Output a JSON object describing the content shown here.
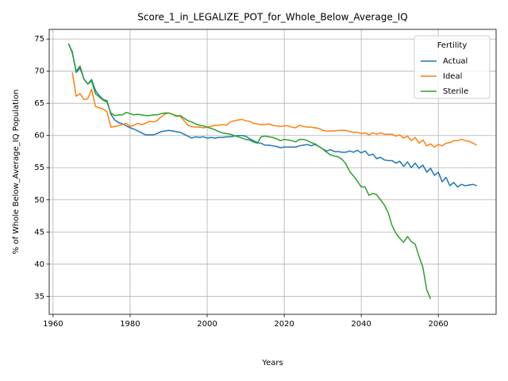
{
  "chart_data": {
    "type": "line",
    "title": "Score_1_in_LEGALIZE_POT_for_Whole_Below_Average_IQ",
    "xlabel": "Years",
    "ylabel": "% of Whole Below_Average_IQ Population",
    "legend_title": "Fertility",
    "legend_loc": "upper right",
    "grid": true,
    "xlim": [
      1959,
      2075
    ],
    "xticks": [
      1960,
      1980,
      2000,
      2020,
      2040,
      2060
    ],
    "ylim": [
      32.2,
      76.5
    ],
    "yticks": [
      35,
      40,
      45,
      50,
      55,
      60,
      65,
      70,
      75
    ],
    "series": [
      {
        "name": "Actual",
        "color": "#1f77b4",
        "x": [
          1964,
          1965,
          1966,
          1967,
          1968,
          1969,
          1970,
          1971,
          1972,
          1973,
          1974,
          1975,
          1976,
          1977,
          1978,
          1979,
          1980,
          1981,
          1982,
          1983,
          1984,
          1985,
          1986,
          1987,
          1988,
          1989,
          1990,
          1991,
          1992,
          1993,
          1994,
          1995,
          1996,
          1997,
          1998,
          1999,
          2000,
          2001,
          2002,
          2003,
          2004,
          2005,
          2006,
          2007,
          2008,
          2009,
          2010,
          2011,
          2012,
          2013,
          2014,
          2015,
          2016,
          2017,
          2018,
          2019,
          2020,
          2021,
          2022,
          2023,
          2024,
          2025,
          2026,
          2027,
          2028,
          2029,
          2030,
          2031,
          2032,
          2033,
          2034,
          2035,
          2036,
          2037,
          2038,
          2039,
          2040,
          2041,
          2042,
          2043,
          2044,
          2045,
          2046,
          2047,
          2048,
          2049,
          2050,
          2051,
          2052,
          2053,
          2054,
          2055,
          2056,
          2057,
          2058,
          2059,
          2060,
          2061,
          2062,
          2063,
          2064,
          2065,
          2066,
          2067,
          2068,
          2069,
          2070
        ],
        "values": [
          74.3,
          73,
          69.8,
          70.5,
          68.8,
          68,
          68.7,
          67,
          66.2,
          65.6,
          65.4,
          63.3,
          62.4,
          62,
          61.8,
          61.5,
          61.2,
          61,
          60.7,
          60.4,
          60.1,
          60.1,
          60.1,
          60.3,
          60.6,
          60.7,
          60.8,
          60.7,
          60.6,
          60.5,
          60.2,
          59.9,
          59.6,
          59.8,
          59.7,
          59.8,
          59.6,
          59.7,
          59.6,
          59.7,
          59.7,
          59.8,
          59.8,
          59.9,
          60,
          60,
          59.9,
          59.5,
          59.2,
          58.9,
          58.8,
          58.5,
          58.5,
          58.4,
          58.3,
          58.1,
          58.2,
          58.2,
          58.2,
          58.2,
          58.4,
          58.5,
          58.6,
          58.4,
          58.6,
          58.3,
          57.9,
          57.6,
          57.8,
          57.5,
          57.5,
          57.4,
          57.4,
          57.6,
          57.4,
          57.7,
          57.3,
          57.6,
          56.9,
          57.1,
          56.4,
          56.6,
          56.2,
          56.1,
          56.1,
          55.7,
          56,
          55.2,
          55.9,
          55,
          55.7,
          54.9,
          55.4,
          54.3,
          54.9,
          53.8,
          54.3,
          52.8,
          53.5,
          52.2,
          52.7,
          52,
          52.4,
          52.2,
          52.3,
          52.4,
          52.2
        ]
      },
      {
        "name": "Ideal",
        "color": "#ff7f0e",
        "x": [
          1965,
          1966,
          1967,
          1968,
          1969,
          1970,
          1971,
          1972,
          1973,
          1974,
          1975,
          1976,
          1977,
          1978,
          1979,
          1980,
          1981,
          1982,
          1983,
          1984,
          1985,
          1986,
          1987,
          1988,
          1989,
          1990,
          1991,
          1992,
          1993,
          1994,
          1995,
          1996,
          1997,
          1998,
          1999,
          2000,
          2001,
          2002,
          2003,
          2004,
          2005,
          2006,
          2007,
          2008,
          2009,
          2010,
          2011,
          2012,
          2013,
          2014,
          2015,
          2016,
          2017,
          2018,
          2019,
          2020,
          2021,
          2022,
          2023,
          2024,
          2025,
          2026,
          2027,
          2028,
          2029,
          2030,
          2031,
          2032,
          2033,
          2034,
          2035,
          2036,
          2037,
          2038,
          2039,
          2040,
          2041,
          2042,
          2043,
          2044,
          2045,
          2046,
          2047,
          2048,
          2049,
          2050,
          2051,
          2052,
          2053,
          2054,
          2055,
          2056,
          2057,
          2058,
          2059,
          2060,
          2061,
          2062,
          2063,
          2064,
          2065,
          2066,
          2067,
          2068,
          2069,
          2070
        ],
        "values": [
          69.8,
          66.1,
          66.5,
          65.6,
          65.7,
          67.2,
          64.5,
          64.3,
          64.1,
          63.7,
          61.3,
          61.4,
          61.5,
          61.7,
          61.9,
          61.4,
          61.6,
          61.9,
          61.7,
          61.9,
          62.2,
          62.1,
          62.3,
          62.9,
          63.3,
          63.5,
          63.3,
          63.1,
          63,
          62.3,
          61.6,
          61.4,
          61.3,
          61.3,
          61.2,
          61.3,
          61.4,
          61.6,
          61.6,
          61.7,
          61.6,
          62.1,
          62.3,
          62.4,
          62.5,
          62.3,
          62.2,
          61.9,
          61.8,
          61.7,
          61.7,
          61.8,
          61.6,
          61.5,
          61.4,
          61.5,
          61.5,
          61.3,
          61.2,
          61.6,
          61.4,
          61.3,
          61.3,
          61.2,
          61.1,
          60.8,
          60.7,
          60.7,
          60.7,
          60.8,
          60.8,
          60.8,
          60.6,
          60.5,
          60.5,
          60.3,
          60.4,
          60.1,
          60.4,
          60.2,
          60.4,
          60.2,
          60.2,
          60.2,
          59.9,
          60.1,
          59.6,
          59.9,
          59.2,
          59.7,
          58.8,
          59.3,
          58.4,
          58.7,
          58.2,
          58.6,
          58.4,
          58.8,
          58.9,
          59.2,
          59.2,
          59.4,
          59.2,
          59.1,
          58.8,
          58.5
        ]
      },
      {
        "name": "Sterile",
        "color": "#2ca02c",
        "x": [
          1964,
          1965,
          1966,
          1967,
          1968,
          1969,
          1970,
          1971,
          1972,
          1973,
          1974,
          1975,
          1976,
          1977,
          1978,
          1979,
          1980,
          1981,
          1982,
          1983,
          1984,
          1985,
          1986,
          1987,
          1988,
          1989,
          1990,
          1991,
          1992,
          1993,
          1994,
          1995,
          1996,
          1997,
          1998,
          1999,
          2000,
          2001,
          2002,
          2003,
          2004,
          2005,
          2006,
          2007,
          2008,
          2009,
          2010,
          2011,
          2012,
          2013,
          2014,
          2015,
          2016,
          2017,
          2018,
          2019,
          2020,
          2021,
          2022,
          2023,
          2024,
          2025,
          2026,
          2027,
          2028,
          2029,
          2030,
          2031,
          2032,
          2033,
          2034,
          2035,
          2036,
          2037,
          2038,
          2039,
          2040,
          2041,
          2042,
          2043,
          2044,
          2045,
          2046,
          2047,
          2048,
          2049,
          2050,
          2051,
          2052,
          2053,
          2054,
          2055,
          2056,
          2057,
          2058
        ],
        "values": [
          74.3,
          72.8,
          70,
          70.8,
          68.8,
          68,
          68.5,
          66.5,
          66,
          65.5,
          65.2,
          63.5,
          63.1,
          63.2,
          63.2,
          63.6,
          63.4,
          63.2,
          63.3,
          63.2,
          63.1,
          63.1,
          63.2,
          63.2,
          63.4,
          63.5,
          63.5,
          63.3,
          63,
          63.1,
          62.7,
          62.3,
          62.1,
          61.8,
          61.6,
          61.5,
          61.3,
          61.1,
          60.9,
          60.6,
          60.4,
          60.3,
          60.2,
          60,
          59.8,
          59.6,
          59.4,
          59.3,
          59,
          58.8,
          59.8,
          59.9,
          59.8,
          59.7,
          59.5,
          59.2,
          59.4,
          59.3,
          59.2,
          59,
          59.4,
          59.4,
          59.2,
          58.9,
          58.7,
          58.3,
          57.9,
          57.4,
          57,
          56.8,
          56.7,
          56.3,
          55.6,
          54.4,
          53.7,
          52.9,
          52,
          52,
          50.7,
          51,
          50.8,
          50,
          49.2,
          48,
          46,
          44.8,
          44,
          43.4,
          44.3,
          43.5,
          43.1,
          41.2,
          39.5,
          36,
          34.6
        ]
      }
    ]
  }
}
